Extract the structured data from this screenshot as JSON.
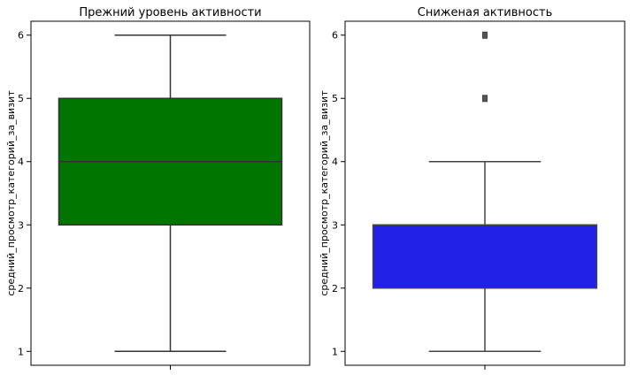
{
  "chart_data": [
    {
      "type": "box",
      "title": "Прежний уровень активности",
      "xlabel": "",
      "ylabel": "средний_просмотр_категорий_за_визит",
      "ylim": [
        0.78,
        6.22
      ],
      "yticks": [
        "1",
        "2",
        "3",
        "4",
        "5",
        "6"
      ],
      "box": {
        "whisker_low": 1,
        "q1": 3,
        "median": 4,
        "q3": 5,
        "whisker_high": 6,
        "outliers": []
      },
      "fill_color": "#007500",
      "edge_color": "#333333",
      "grid": false
    },
    {
      "type": "box",
      "title": "Сниженая активность",
      "xlabel": "",
      "ylabel": "средний_просмотр_категорий_за_визит",
      "ylim": [
        0.78,
        6.22
      ],
      "yticks": [
        "1",
        "2",
        "3",
        "4",
        "5",
        "6"
      ],
      "box": {
        "whisker_low": 1,
        "q1": 2,
        "median": 3,
        "q3": 3,
        "whisker_high": 4,
        "outliers": [
          5,
          6
        ]
      },
      "fill_color": "#2020e6",
      "edge_color": "#444444",
      "grid": false
    }
  ]
}
